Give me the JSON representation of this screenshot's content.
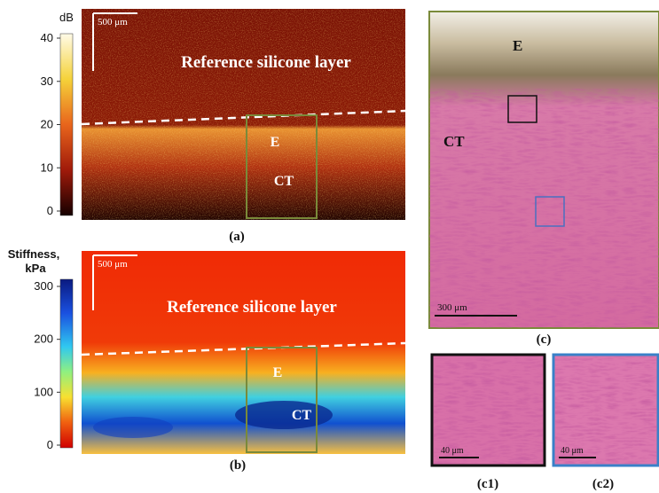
{
  "panels": {
    "a": {
      "label": "(a)",
      "colorbar": {
        "title": "dB",
        "ticks": [
          0,
          10,
          20,
          30,
          40
        ]
      },
      "scale_bar": "500 μm",
      "texts": [
        "Reference silicone layer",
        "E",
        "CT"
      ]
    },
    "b": {
      "label": "(b)",
      "colorbar": {
        "title": [
          "Stiffness,",
          "kPa"
        ],
        "ticks": [
          0,
          100,
          200,
          300
        ]
      },
      "scale_bar": "500 μm",
      "texts": [
        "Reference silicone layer",
        "E",
        "CT"
      ]
    },
    "c": {
      "label": "(c)",
      "scale_bar": "300 μm",
      "texts": [
        "E",
        "CT"
      ]
    },
    "c1": {
      "label": "(c1)",
      "scale_bar": "40 μm"
    },
    "c2": {
      "label": "(c2)",
      "scale_bar": "40 μm"
    }
  }
}
